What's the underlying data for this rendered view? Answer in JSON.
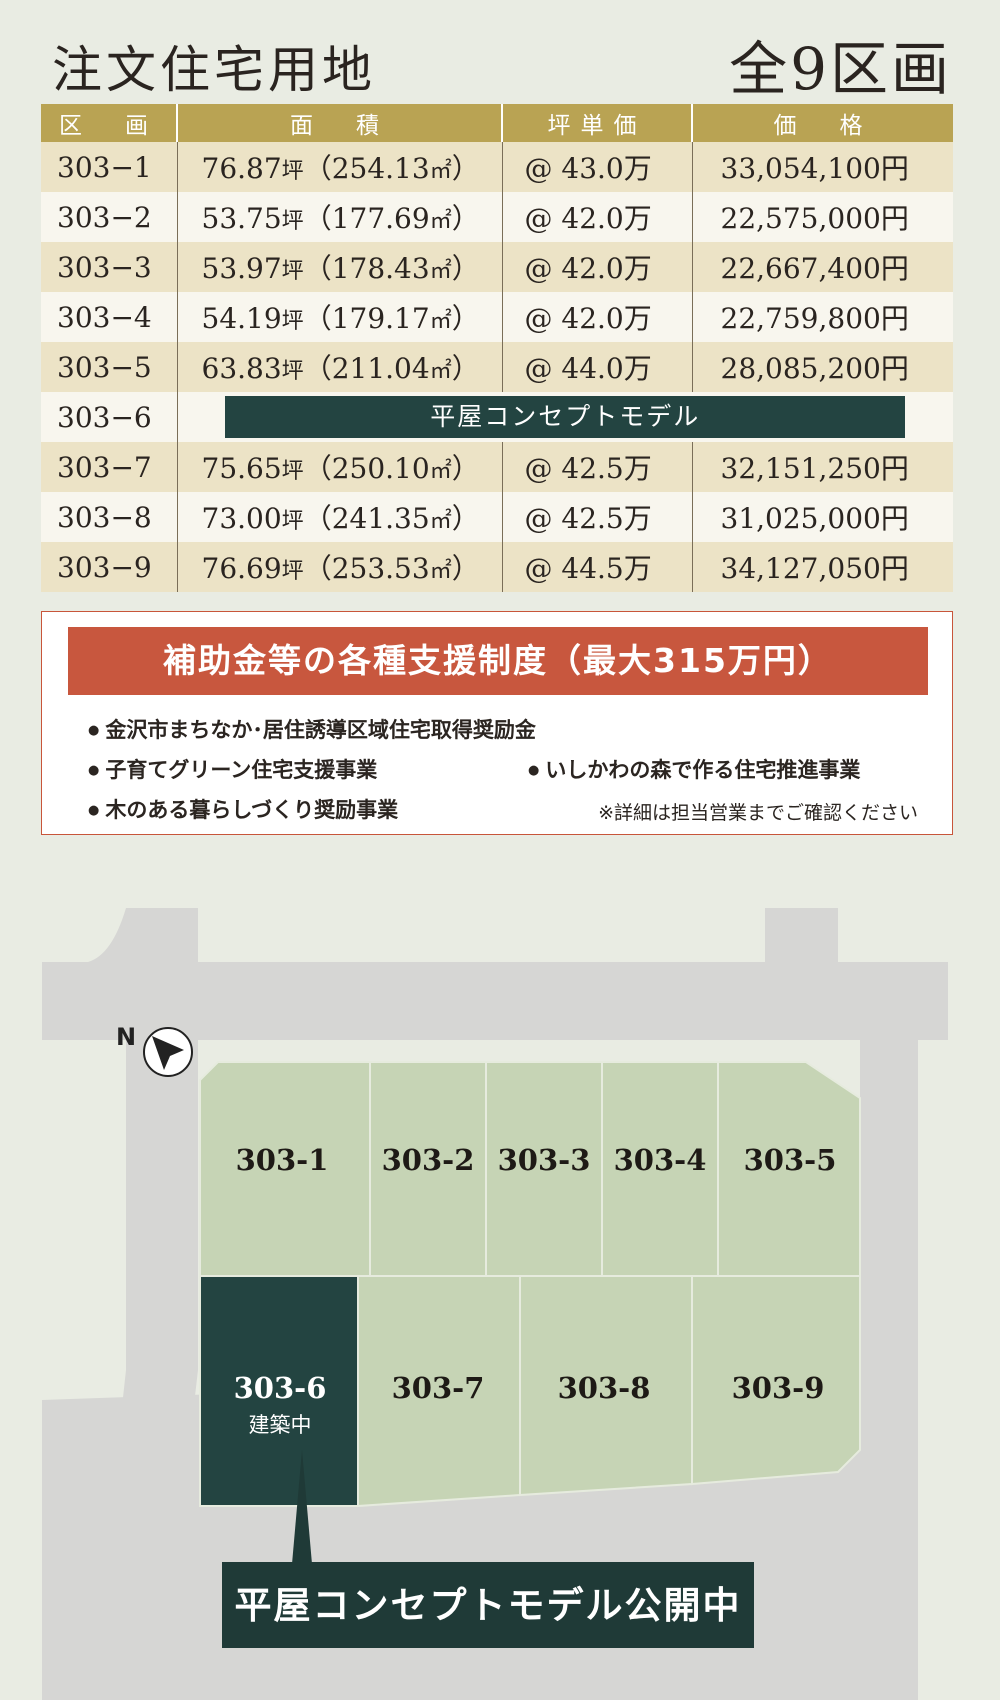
{
  "header": {
    "title": "注文住宅用地",
    "count": "全9区画"
  },
  "table": {
    "headers": [
      "区　画",
      "面　積",
      "坪単価",
      "価　格"
    ],
    "rows": [
      {
        "lot": "303−1",
        "tsubo": "76.87",
        "tsubo_unit": "坪",
        "sqm": "254.13",
        "sqm_unit": "㎡",
        "unit_price": "@ 43.0万",
        "price": "33,054,100円"
      },
      {
        "lot": "303−2",
        "tsubo": "53.75",
        "tsubo_unit": "坪",
        "sqm": "177.69",
        "sqm_unit": "㎡",
        "unit_price": "@ 42.0万",
        "price": "22,575,000円"
      },
      {
        "lot": "303−3",
        "tsubo": "53.97",
        "tsubo_unit": "坪",
        "sqm": "178.43",
        "sqm_unit": "㎡",
        "unit_price": "@ 42.0万",
        "price": "22,667,400円"
      },
      {
        "lot": "303−4",
        "tsubo": "54.19",
        "tsubo_unit": "坪",
        "sqm": "179.17",
        "sqm_unit": "㎡",
        "unit_price": "@ 42.0万",
        "price": "22,759,800円"
      },
      {
        "lot": "303−5",
        "tsubo": "63.83",
        "tsubo_unit": "坪",
        "sqm": "211.04",
        "sqm_unit": "㎡",
        "unit_price": "@ 44.0万",
        "price": "28,085,200円"
      },
      {
        "lot": "303−6",
        "model": "平屋コンセプトモデル"
      },
      {
        "lot": "303−7",
        "tsubo": "75.65",
        "tsubo_unit": "坪",
        "sqm": "250.10",
        "sqm_unit": "㎡",
        "unit_price": "@ 42.5万",
        "price": "32,151,250円"
      },
      {
        "lot": "303−8",
        "tsubo": "73.00",
        "tsubo_unit": "坪",
        "sqm": "241.35",
        "sqm_unit": "㎡",
        "unit_price": "@ 42.5万",
        "price": "31,025,000円"
      },
      {
        "lot": "303−9",
        "tsubo": "76.69",
        "tsubo_unit": "坪",
        "sqm": "253.53",
        "sqm_unit": "㎡",
        "unit_price": "@ 44.5万",
        "price": "34,127,050円"
      }
    ]
  },
  "support": {
    "title": "補助金等の各種支援制度（最大315万円）",
    "items": [
      "金沢市まちなか･居住誘導区域住宅取得奨励金",
      "子育てグリーン住宅支援事業",
      "いしかわの森で作る住宅推進事業",
      "木のある暮らしづくり奨励事業"
    ],
    "note": "※詳細は担当営業までご確認ください"
  },
  "map": {
    "north_label": "N",
    "lots": [
      "303-1",
      "303-2",
      "303-3",
      "303-4",
      "303-5",
      "303-6",
      "303-7",
      "303-8",
      "303-9"
    ],
    "status": "建築中",
    "banner": "平屋コンセプトモデル公開中",
    "colors": {
      "lot": "#c6d4b5",
      "model_lot": "#234441",
      "road": "#d6d6d4",
      "background": "#e9ece3"
    }
  }
}
